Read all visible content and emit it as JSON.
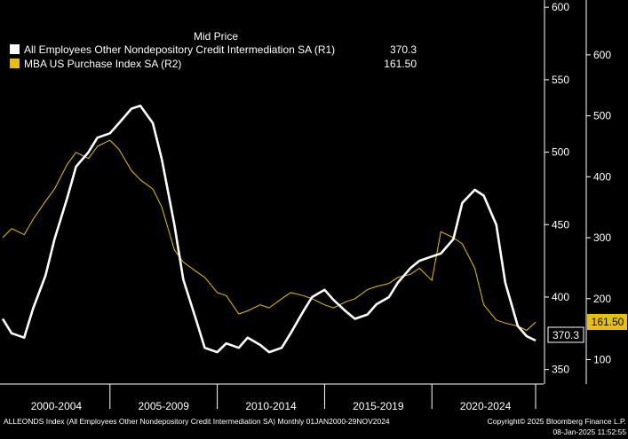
{
  "chart_data": {
    "type": "line",
    "legend_title": "Mid Price",
    "legend_placement": "top-left",
    "x_range": [
      "2000-01",
      "2024-11"
    ],
    "x_tick_labels": [
      "2000-2004",
      "2005-2009",
      "2010-2014",
      "2015-2019",
      "2020-2024"
    ],
    "series": [
      {
        "name": "All Employees Other Nondepository Credit Intermediation SA  (R1)",
        "last_value_label": "370.3",
        "axis": "R1",
        "color": "#ffffff",
        "x": [
          "2000-01",
          "2000-06",
          "2001-01",
          "2001-06",
          "2002-01",
          "2002-06",
          "2003-01",
          "2003-06",
          "2004-01",
          "2004-06",
          "2005-01",
          "2005-06",
          "2006-01",
          "2006-06",
          "2007-01",
          "2007-06",
          "2008-01",
          "2008-06",
          "2009-01",
          "2009-06",
          "2010-01",
          "2010-06",
          "2011-01",
          "2011-06",
          "2012-01",
          "2012-06",
          "2013-01",
          "2013-06",
          "2014-01",
          "2014-06",
          "2015-01",
          "2015-06",
          "2016-01",
          "2016-06",
          "2017-01",
          "2017-06",
          "2018-01",
          "2018-06",
          "2019-01",
          "2019-06",
          "2020-01",
          "2020-06",
          "2021-01",
          "2021-06",
          "2022-01",
          "2022-06",
          "2023-01",
          "2023-06",
          "2024-01",
          "2024-06",
          "2024-11"
        ],
        "values": [
          385,
          375,
          372,
          392,
          415,
          440,
          468,
          490,
          500,
          510,
          513,
          520,
          530,
          532,
          520,
          495,
          450,
          412,
          385,
          365,
          362,
          368,
          365,
          372,
          367,
          362,
          365,
          375,
          390,
          400,
          405,
          398,
          390,
          385,
          388,
          395,
          400,
          410,
          420,
          425,
          428,
          430,
          440,
          465,
          474,
          470,
          450,
          410,
          380,
          373,
          370
        ]
      },
      {
        "name": "MBA US Purchase Index SA  (R2)",
        "last_value_label": "161.50",
        "axis": "R2",
        "color": "#e8c000",
        "x": [
          "2000-01",
          "2000-06",
          "2001-01",
          "2001-06",
          "2002-01",
          "2002-06",
          "2003-01",
          "2003-06",
          "2004-01",
          "2004-06",
          "2005-01",
          "2005-06",
          "2006-01",
          "2006-06",
          "2007-01",
          "2007-06",
          "2008-01",
          "2008-06",
          "2009-01",
          "2009-06",
          "2010-01",
          "2010-06",
          "2011-01",
          "2011-06",
          "2012-01",
          "2012-06",
          "2013-01",
          "2013-06",
          "2014-01",
          "2014-06",
          "2015-01",
          "2015-06",
          "2016-01",
          "2016-06",
          "2017-01",
          "2017-06",
          "2018-01",
          "2018-06",
          "2019-01",
          "2019-06",
          "2020-01",
          "2020-06",
          "2021-01",
          "2021-06",
          "2022-01",
          "2022-06",
          "2023-01",
          "2023-06",
          "2024-01",
          "2024-06",
          "2024-11"
        ],
        "values": [
          300,
          315,
          305,
          330,
          360,
          380,
          420,
          440,
          430,
          450,
          460,
          445,
          410,
          395,
          380,
          350,
          280,
          260,
          245,
          235,
          210,
          205,
          175,
          180,
          190,
          185,
          200,
          210,
          205,
          200,
          190,
          185,
          195,
          200,
          215,
          220,
          225,
          235,
          240,
          250,
          230,
          310,
          300,
          290,
          250,
          190,
          165,
          160,
          155,
          148,
          161.5
        ]
      }
    ],
    "axes": {
      "R1": {
        "min": 340,
        "max": 605,
        "ticks": [
          350,
          400,
          450,
          500,
          550,
          600
        ]
      },
      "R2": {
        "min": 60,
        "max": 690,
        "ticks": [
          100,
          200,
          300,
          400,
          500,
          600
        ]
      }
    },
    "grid": false
  },
  "footer": {
    "left": "ALLEONDS Index (All Employees Other Nondepository Credit Intermediation SA)  Monthly 01JAN2000-29NOV2024",
    "copyright": "Copyright© 2025 Bloomberg Finance L.P.",
    "timestamp": "08-Jan-2025 11:52:55"
  },
  "colors": {
    "background": "#000000",
    "series1": "#ffffff",
    "series2": "#e8c000"
  }
}
